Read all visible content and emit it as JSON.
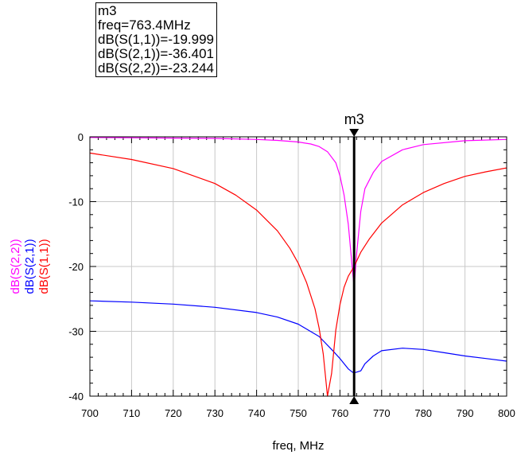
{
  "marker_box": {
    "name": "m3",
    "freq_line": "freq=763.4MHz",
    "s11_line": "dB(S(1,1))=-19.999",
    "s21_line": "dB(S(2,1))=-36.401",
    "s22_line": "dB(S(2,2))=-23.244"
  },
  "colors": {
    "s22": "#ff00ff",
    "s21": "#0000ff",
    "s11": "#ff0000",
    "marker": "#000000",
    "grid": "#c8c8c8",
    "axis": "#000000"
  },
  "chart_data": {
    "type": "line",
    "xlabel": "freq, MHz",
    "ylabels": [
      "dB(S(2,2))",
      "dB(S(2,1))",
      "dB(S(1,1))"
    ],
    "xlim": [
      700,
      800
    ],
    "ylim": [
      -40,
      0
    ],
    "x_ticks": [
      700,
      710,
      720,
      730,
      740,
      750,
      760,
      770,
      780,
      790,
      800
    ],
    "y_ticks": [
      0,
      -10,
      -20,
      -30,
      -40
    ],
    "grid": true,
    "marker": {
      "name": "m3",
      "x": 763.4
    },
    "series": [
      {
        "name": "dB(S(2,2))",
        "color": "#ff00ff",
        "x": [
          700,
          710,
          720,
          730,
          740,
          745,
          750,
          753,
          755,
          757,
          759,
          760,
          761,
          762,
          763,
          763.4,
          764,
          765,
          766,
          768,
          770,
          775,
          780,
          790,
          800
        ],
        "y": [
          -0.1,
          -0.15,
          -0.2,
          -0.25,
          -0.4,
          -0.55,
          -0.8,
          -1.1,
          -1.5,
          -2.3,
          -4.0,
          -6.0,
          -9.0,
          -13.5,
          -20.5,
          -23.2,
          -18.0,
          -11.5,
          -8.0,
          -5.5,
          -3.8,
          -2.0,
          -1.2,
          -0.6,
          -0.4
        ]
      },
      {
        "name": "dB(S(2,1))",
        "color": "#0000ff",
        "x": [
          700,
          710,
          720,
          730,
          740,
          745,
          750,
          755,
          758,
          760,
          762,
          763,
          763.4,
          764,
          765,
          766,
          768,
          770,
          775,
          780,
          785,
          790,
          795,
          800
        ],
        "y": [
          -25.3,
          -25.5,
          -25.8,
          -26.3,
          -27.1,
          -27.8,
          -28.9,
          -30.8,
          -32.8,
          -34.2,
          -35.8,
          -36.3,
          -36.4,
          -36.3,
          -36.1,
          -35.0,
          -33.8,
          -33.0,
          -32.6,
          -32.8,
          -33.3,
          -33.8,
          -34.2,
          -34.6
        ]
      },
      {
        "name": "dB(S(1,1))",
        "color": "#ff0000",
        "x": [
          700,
          710,
          720,
          730,
          735,
          740,
          745,
          748,
          750,
          752,
          754,
          755,
          756,
          757,
          758,
          759,
          760,
          761,
          762,
          763.4,
          765,
          767,
          770,
          775,
          780,
          785,
          790,
          795,
          800
        ],
        "y": [
          -2.5,
          -3.5,
          -4.9,
          -7.2,
          -9.0,
          -11.3,
          -14.5,
          -17.2,
          -19.5,
          -22.5,
          -26.5,
          -29.5,
          -33.5,
          -40.0,
          -36.5,
          -29.8,
          -25.9,
          -23.2,
          -21.5,
          -20.0,
          -17.8,
          -15.8,
          -13.3,
          -10.5,
          -8.6,
          -7.2,
          -6.1,
          -5.4,
          -4.8
        ]
      }
    ]
  }
}
